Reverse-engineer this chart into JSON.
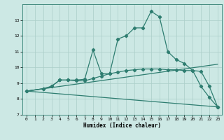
{
  "xlabel": "Humidex (Indice chaleur)",
  "background_color": "#cce8e4",
  "line_color": "#2e7d70",
  "grid_color": "#aacec8",
  "xlim": [
    -0.5,
    23.5
  ],
  "ylim": [
    7,
    14
  ],
  "yticks": [
    7,
    8,
    9,
    10,
    11,
    12,
    13
  ],
  "xticks": [
    0,
    1,
    2,
    3,
    4,
    5,
    6,
    7,
    8,
    9,
    10,
    11,
    12,
    13,
    14,
    15,
    16,
    17,
    18,
    19,
    20,
    21,
    22,
    23
  ],
  "line1_x": [
    0,
    2,
    3,
    4,
    5,
    6,
    7,
    8,
    9,
    10,
    11,
    12,
    13,
    14,
    15,
    16,
    17,
    18,
    19,
    20,
    21,
    22,
    23
  ],
  "line1_y": [
    8.5,
    8.65,
    8.8,
    9.2,
    9.2,
    9.2,
    9.25,
    11.1,
    9.6,
    9.6,
    11.8,
    12.0,
    12.5,
    12.5,
    13.55,
    13.2,
    11.0,
    10.5,
    10.25,
    9.8,
    8.8,
    8.1,
    7.5
  ],
  "line2_x": [
    0,
    2,
    3,
    4,
    5,
    6,
    7,
    8,
    9,
    10,
    11,
    12,
    13,
    14,
    15,
    16,
    17,
    18,
    19,
    20,
    21,
    22,
    23
  ],
  "line2_y": [
    8.5,
    8.65,
    8.8,
    9.2,
    9.2,
    9.15,
    9.15,
    9.3,
    9.45,
    9.6,
    9.7,
    9.8,
    9.85,
    9.9,
    9.9,
    9.9,
    9.85,
    9.85,
    9.8,
    9.8,
    9.75,
    8.8,
    7.5
  ],
  "line3_x": [
    0,
    23
  ],
  "line3_y": [
    8.5,
    10.2
  ],
  "line4_x": [
    0,
    23
  ],
  "line4_y": [
    8.5,
    7.5
  ]
}
